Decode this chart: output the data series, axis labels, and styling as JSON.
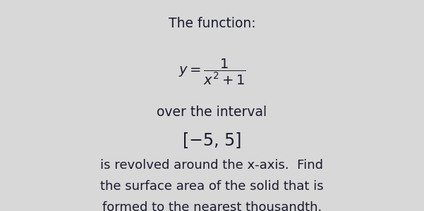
{
  "background_color": "#d8d8d8",
  "title_line": "The function:",
  "interval_label": "over the interval",
  "interval": "[−5, 5]",
  "body_line1": "is revolved around the x-axis.  Find",
  "body_line2": "the surface area of the solid that is",
  "body_line3": "formed to the nearest thousandth.",
  "text_color": "#1a1a2e",
  "font_size_title": 13.5,
  "font_size_formula": 13,
  "font_size_interval": 17,
  "font_size_body": 13
}
